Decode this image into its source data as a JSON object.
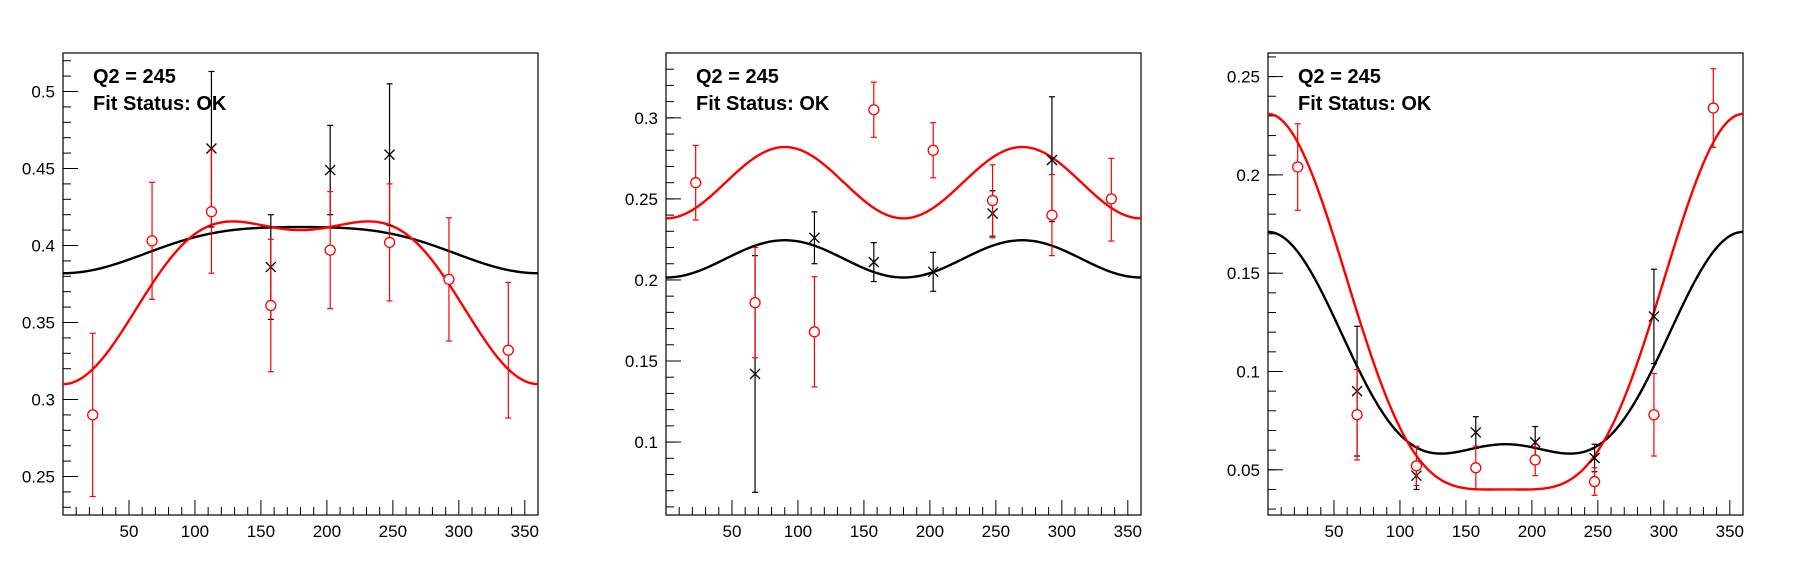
{
  "chart_data": [
    {
      "type": "scatter",
      "title": "",
      "annotations": [
        "Q2 = 245",
        "Fit Status: OK"
      ],
      "xlim": [
        0,
        360
      ],
      "ylim": [
        0.225,
        0.525
      ],
      "xticks": [
        50,
        100,
        150,
        200,
        250,
        300,
        350
      ],
      "yticks": [
        0.25,
        0.3,
        0.35,
        0.4,
        0.45,
        0.5
      ],
      "yticklabels": [
        "0.25",
        "0.3",
        "0.35",
        "0.4",
        "0.45",
        "0.5"
      ],
      "series": [
        {
          "color": "#000000",
          "marker": "x",
          "points": [
            {
              "x": 112.5,
              "y": 0.463,
              "lo": 0.412,
              "hi": 0.513
            },
            {
              "x": 157.5,
              "y": 0.386,
              "lo": 0.352,
              "hi": 0.42
            },
            {
              "x": 202.5,
              "y": 0.449,
              "lo": 0.42,
              "hi": 0.478
            },
            {
              "x": 247.5,
              "y": 0.459,
              "lo": 0.413,
              "hi": 0.505
            }
          ],
          "fit": {
            "a": 0.4,
            "b": -0.015,
            "c": -0.003
          }
        },
        {
          "color": "#ff0000",
          "marker": "o",
          "points": [
            {
              "x": 22.5,
              "y": 0.29,
              "lo": 0.237,
              "hi": 0.343
            },
            {
              "x": 67.5,
              "y": 0.403,
              "lo": 0.365,
              "hi": 0.441
            },
            {
              "x": 112.5,
              "y": 0.422,
              "lo": 0.382,
              "hi": 0.462
            },
            {
              "x": 157.5,
              "y": 0.361,
              "lo": 0.318,
              "hi": 0.404
            },
            {
              "x": 202.5,
              "y": 0.397,
              "lo": 0.359,
              "hi": 0.435
            },
            {
              "x": 247.5,
              "y": 0.402,
              "lo": 0.364,
              "hi": 0.44
            },
            {
              "x": 292.5,
              "y": 0.378,
              "lo": 0.338,
              "hi": 0.418
            },
            {
              "x": 337.5,
              "y": 0.332,
              "lo": 0.288,
              "hi": 0.376
            }
          ],
          "fit": {
            "a": 0.38,
            "b": -0.05,
            "c": -0.02
          }
        }
      ]
    },
    {
      "type": "scatter",
      "title": "",
      "annotations": [
        "Q2 = 245",
        "Fit Status: OK"
      ],
      "xlim": [
        0,
        360
      ],
      "ylim": [
        0.055,
        0.34
      ],
      "xticks": [
        50,
        100,
        150,
        200,
        250,
        300,
        350
      ],
      "yticks": [
        0.1,
        0.15,
        0.2,
        0.25,
        0.3
      ],
      "yticklabels": [
        "0.1",
        "0.15",
        "0.2",
        "0.25",
        "0.3"
      ],
      "series": [
        {
          "color": "#000000",
          "marker": "x",
          "points": [
            {
              "x": 67.5,
              "y": 0.142,
              "lo": 0.069,
              "hi": 0.215
            },
            {
              "x": 112.5,
              "y": 0.226,
              "lo": 0.21,
              "hi": 0.242
            },
            {
              "x": 157.5,
              "y": 0.211,
              "lo": 0.199,
              "hi": 0.223
            },
            {
              "x": 202.5,
              "y": 0.205,
              "lo": 0.193,
              "hi": 0.217
            },
            {
              "x": 247.5,
              "y": 0.241,
              "lo": 0.227,
              "hi": 0.255
            },
            {
              "x": 292.5,
              "y": 0.274,
              "lo": 0.236,
              "hi": 0.313
            }
          ],
          "fit": {
            "a": 0.213,
            "b": 0.0,
            "c": -0.0115
          }
        },
        {
          "color": "#ff0000",
          "marker": "o",
          "points": [
            {
              "x": 22.5,
              "y": 0.26,
              "lo": 0.237,
              "hi": 0.283
            },
            {
              "x": 67.5,
              "y": 0.186,
              "lo": 0.152,
              "hi": 0.22
            },
            {
              "x": 112.5,
              "y": 0.168,
              "lo": 0.134,
              "hi": 0.202
            },
            {
              "x": 157.5,
              "y": 0.305,
              "lo": 0.288,
              "hi": 0.322
            },
            {
              "x": 202.5,
              "y": 0.28,
              "lo": 0.263,
              "hi": 0.297
            },
            {
              "x": 247.5,
              "y": 0.249,
              "lo": 0.226,
              "hi": 0.271
            },
            {
              "x": 292.5,
              "y": 0.24,
              "lo": 0.215,
              "hi": 0.265
            },
            {
              "x": 337.5,
              "y": 0.25,
              "lo": 0.224,
              "hi": 0.275
            }
          ],
          "fit": {
            "a": 0.26,
            "b": 0.0,
            "c": -0.022
          }
        }
      ]
    },
    {
      "type": "scatter",
      "title": "",
      "annotations": [
        "Q2 = 245",
        "Fit Status: OK"
      ],
      "xlim": [
        0,
        360
      ],
      "ylim": [
        0.027,
        0.262
      ],
      "xticks": [
        50,
        100,
        150,
        200,
        250,
        300,
        350
      ],
      "yticks": [
        0.05,
        0.1,
        0.15,
        0.2,
        0.25
      ],
      "yticklabels": [
        "0.05",
        "0.1",
        "0.15",
        "0.2",
        "0.25"
      ],
      "series": [
        {
          "color": "#000000",
          "marker": "x",
          "points": [
            {
              "x": 67.5,
              "y": 0.09,
              "lo": 0.057,
              "hi": 0.123
            },
            {
              "x": 112.5,
              "y": 0.047,
              "lo": 0.04,
              "hi": 0.054
            },
            {
              "x": 157.5,
              "y": 0.069,
              "lo": 0.061,
              "hi": 0.077
            },
            {
              "x": 202.5,
              "y": 0.064,
              "lo": 0.056,
              "hi": 0.072
            },
            {
              "x": 247.5,
              "y": 0.056,
              "lo": 0.049,
              "hi": 0.063
            },
            {
              "x": 292.5,
              "y": 0.128,
              "lo": 0.104,
              "hi": 0.152
            }
          ],
          "fit": {
            "a": 0.0965,
            "b": 0.054,
            "c": 0.0205
          }
        },
        {
          "color": "#ff0000",
          "marker": "o",
          "points": [
            {
              "x": 22.5,
              "y": 0.204,
              "lo": 0.182,
              "hi": 0.226
            },
            {
              "x": 67.5,
              "y": 0.078,
              "lo": 0.055,
              "hi": 0.101
            },
            {
              "x": 112.5,
              "y": 0.052,
              "lo": 0.042,
              "hi": 0.062
            },
            {
              "x": 157.5,
              "y": 0.051,
              "lo": 0.04,
              "hi": 0.062
            },
            {
              "x": 202.5,
              "y": 0.055,
              "lo": 0.047,
              "hi": 0.063
            },
            {
              "x": 247.5,
              "y": 0.044,
              "lo": 0.037,
              "hi": 0.051
            },
            {
              "x": 292.5,
              "y": 0.078,
              "lo": 0.057,
              "hi": 0.099
            },
            {
              "x": 337.5,
              "y": 0.234,
              "lo": 0.214,
              "hi": 0.254
            }
          ],
          "fit": {
            "a": 0.111,
            "b": 0.0955,
            "c": 0.0245
          }
        }
      ]
    }
  ]
}
